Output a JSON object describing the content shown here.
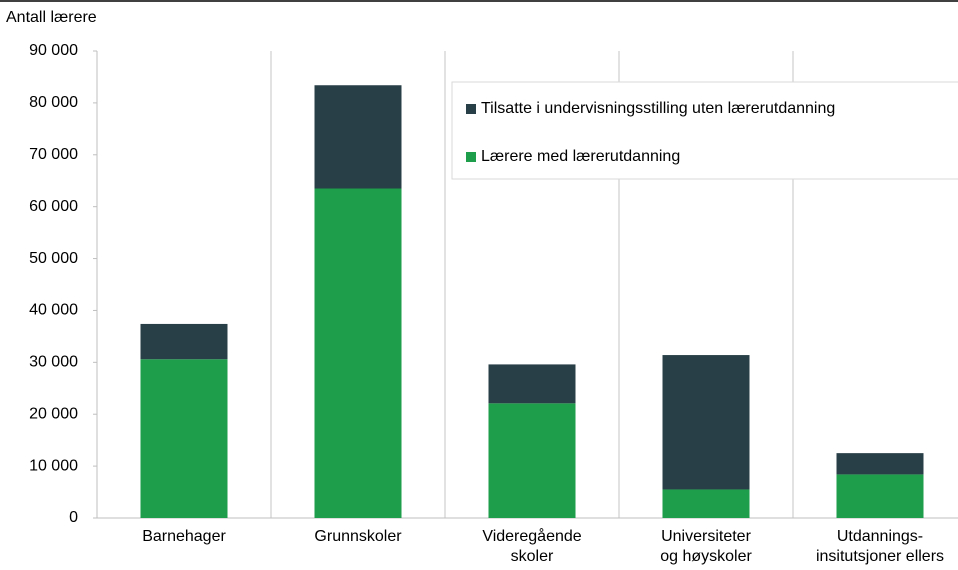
{
  "chart_data": {
    "type": "stacked_bar",
    "y_axis_label": "Antall lærere",
    "categories": [
      "Barnehager",
      "Grunnskoler",
      "Videregående\nskoler",
      "Universiteter\nog høyskoler",
      "Utdannings-\ninsitutsjoner ellers"
    ],
    "series": [
      {
        "name": "Lærere med lærerutdanning",
        "color": "#1e9e4a",
        "values": [
          30600,
          63500,
          22100,
          5500,
          8400
        ]
      },
      {
        "name": "Tilsatte i undervisningsstilling uten lærerutdanning",
        "color": "#283f47",
        "values": [
          6800,
          19900,
          7500,
          25900,
          4100
        ]
      }
    ],
    "ylim": [
      0,
      90000
    ],
    "yticks": [
      0,
      {
        "value": 10000,
        "label": "10 000"
      },
      {
        "value": 20000,
        "label": "20 000"
      },
      {
        "value": 30000,
        "label": "30 000"
      },
      {
        "value": 40000,
        "label": "40 000"
      },
      {
        "value": 50000,
        "label": "50 000"
      },
      {
        "value": 60000,
        "label": "60 000"
      },
      {
        "value": 70000,
        "label": "70 000"
      },
      {
        "value": 80000,
        "label": "80 000"
      },
      {
        "value": 90000,
        "label": "90 000"
      }
    ],
    "grid": "vertical"
  }
}
